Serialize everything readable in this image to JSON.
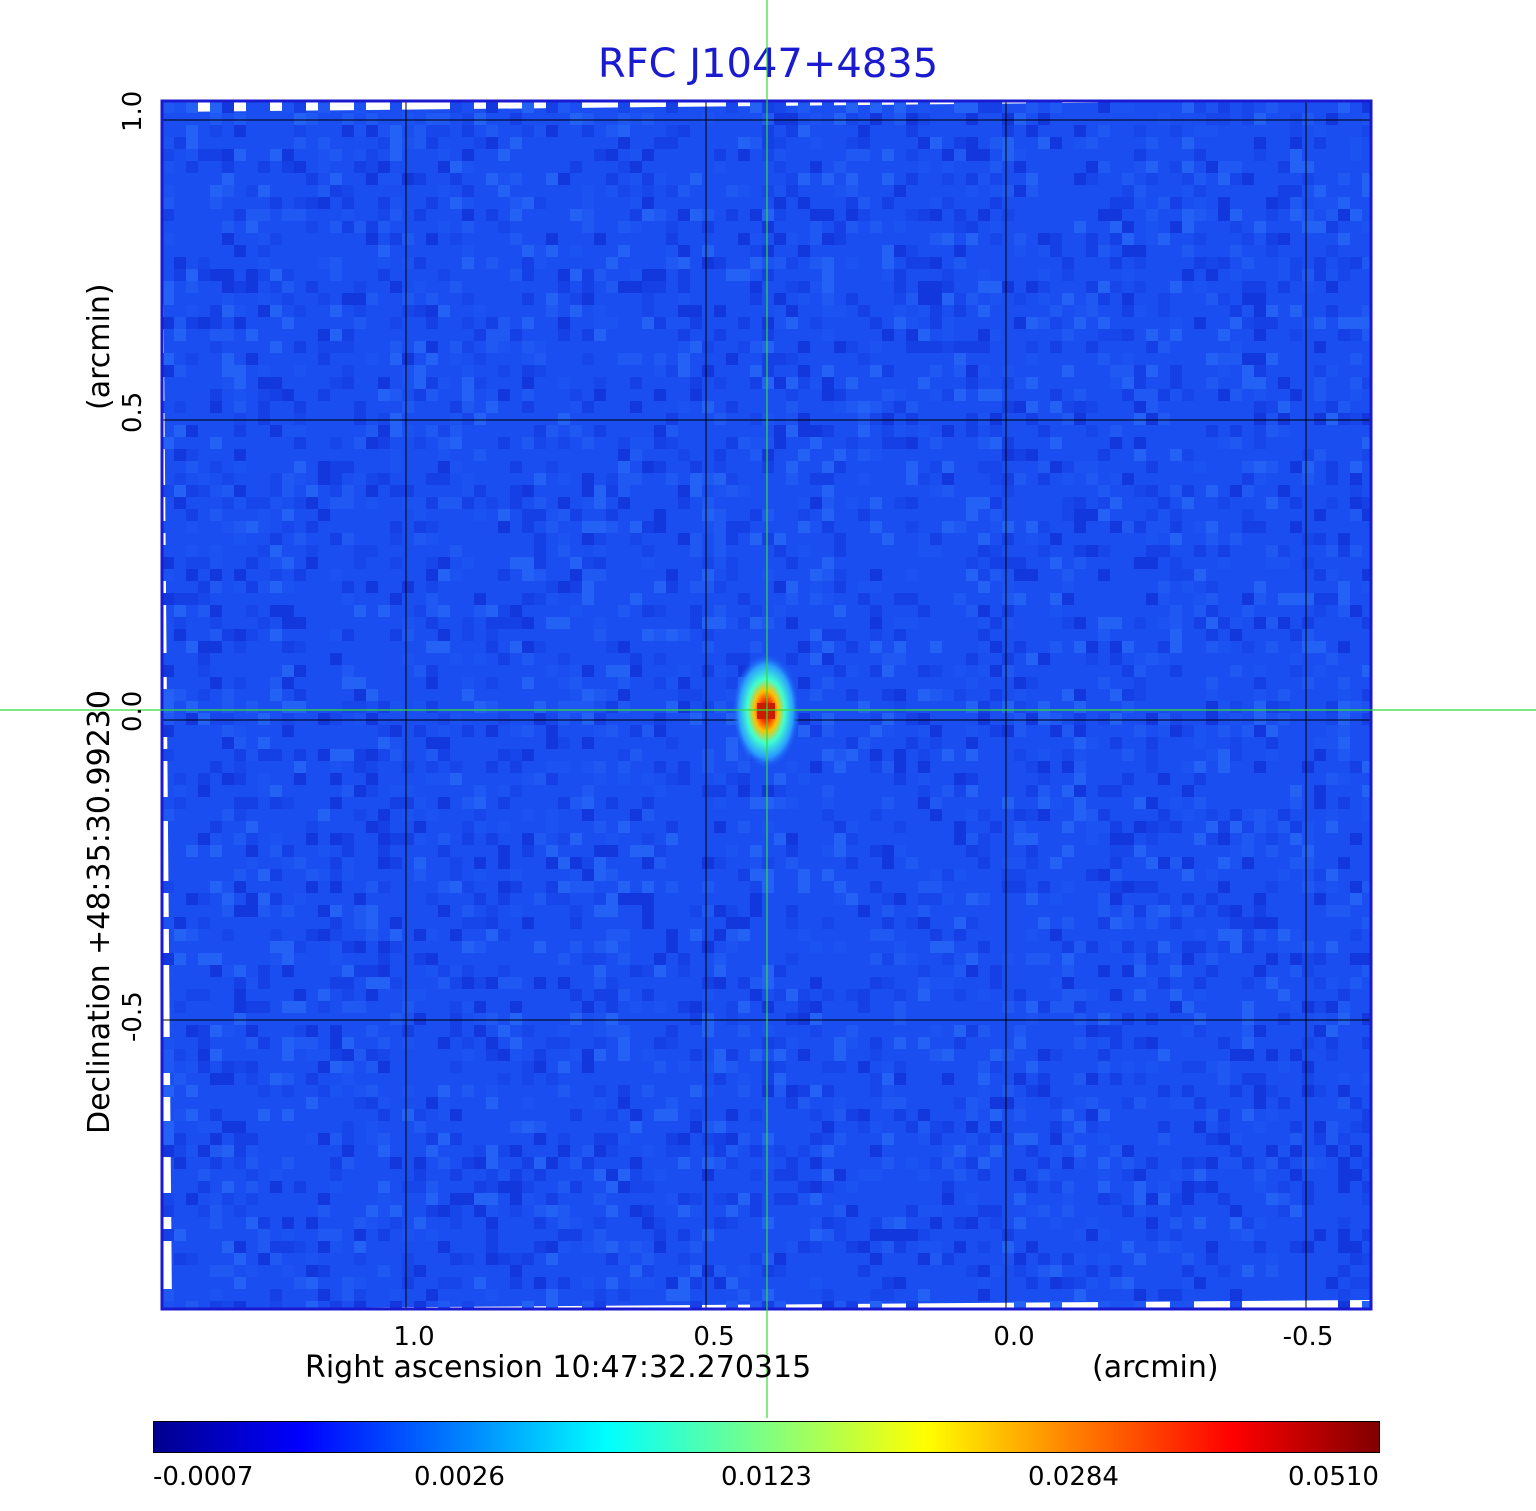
{
  "title": "RFC J1047+4835",
  "colors": {
    "title": "#1a1ad0",
    "frame": "#1a1ad0",
    "crosshair": "#33dd33",
    "background_map": "#1a4ef0",
    "peak": "#cc1a00"
  },
  "image": {
    "colormap": "jet",
    "source_position_arcmin": [
      0.4,
      0.0
    ],
    "x_range_arcmin": [
      1.4,
      -0.6
    ],
    "y_range_arcmin": [
      -1.0,
      1.0
    ]
  },
  "axes": {
    "x_ticks": [
      "1.0",
      "0.5",
      "0.0",
      "-0.5"
    ],
    "y_ticks": [
      "1.0",
      "0.5",
      "0.0",
      "-0.5"
    ],
    "x_label": "Right ascension  10:47:32.270315",
    "x_unit": "(arcmin)",
    "y_label": "Declination  +48:35:30.99230",
    "y_unit": "(arcmin)"
  },
  "colorbar": {
    "ticks": [
      "-0.0007",
      "0.0026",
      "0.0123",
      "0.0284",
      "0.0510"
    ]
  }
}
